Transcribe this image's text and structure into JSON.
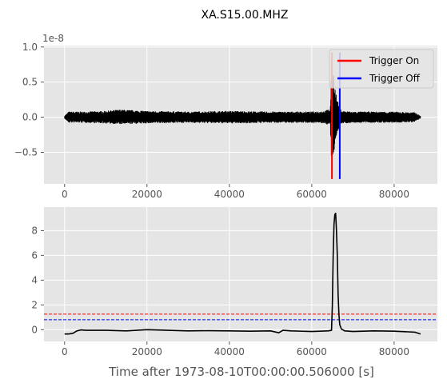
{
  "chart_data": {
    "title": "XA.S15.00.MHZ",
    "xlabel": "Time after 1973-08-10T00:00:00.506000 [s]",
    "style": "ggplot",
    "grid": true,
    "colors": {
      "background": "#e5e5e5",
      "grid": "#ffffff",
      "trace": "#000000",
      "on": "#ff0000",
      "off": "#0000ff",
      "tick": "#555555"
    },
    "panels": [
      {
        "type": "line",
        "name": "waveform",
        "xlim": [
          -5000,
          90500
        ],
        "ylim": [
          -0.95,
          1.02
        ],
        "y_offset_text": "1e-8",
        "xticks": [
          0,
          20000,
          40000,
          60000,
          80000
        ],
        "xtick_labels": [
          "0",
          "20000",
          "40000",
          "60000",
          "80000"
        ],
        "yticks": [
          -0.5,
          0.0,
          0.5,
          1.0
        ],
        "ytick_labels": [
          "−0.5",
          "0.0",
          "0.5",
          "1.0"
        ],
        "trace_envelope": {
          "x": [
            0,
            1000,
            5000,
            10000,
            13500,
            20000,
            30000,
            40000,
            50000,
            60000,
            63000,
            64500,
            64800,
            65000,
            65300,
            65700,
            66200,
            66800,
            67500,
            70000,
            80000,
            85000,
            86400
          ],
          "upper": [
            0.02,
            0.08,
            0.08,
            0.09,
            0.11,
            0.09,
            0.08,
            0.09,
            0.08,
            0.08,
            0.09,
            0.12,
            0.7,
            0.72,
            0.65,
            0.4,
            0.25,
            0.12,
            0.09,
            0.08,
            0.08,
            0.07,
            0.02
          ],
          "lower": [
            -0.02,
            -0.08,
            -0.08,
            -0.09,
            -0.1,
            -0.09,
            -0.08,
            -0.09,
            -0.08,
            -0.08,
            -0.09,
            -0.12,
            -0.65,
            -0.7,
            -0.6,
            -0.35,
            -0.22,
            -0.12,
            -0.09,
            -0.08,
            -0.08,
            -0.07,
            -0.02
          ]
        },
        "trigger_on_x": 64900,
        "trigger_off_x": 66800,
        "trigger_line_range": [
          -0.88,
          0.92
        ],
        "legend": {
          "position": "upper-right",
          "entries": [
            {
              "label": "Trigger On",
              "color": "#ff0000"
            },
            {
              "label": "Trigger Off",
              "color": "#0000ff"
            }
          ]
        }
      },
      {
        "type": "line",
        "name": "characteristic-function",
        "xlim": [
          -5000,
          90500
        ],
        "ylim": [
          -0.95,
          9.9
        ],
        "xticks": [
          0,
          20000,
          40000,
          60000,
          80000
        ],
        "xtick_labels": [
          "0",
          "20000",
          "40000",
          "60000",
          "80000"
        ],
        "yticks": [
          0,
          2,
          4,
          6,
          8
        ],
        "ytick_labels": [
          "0",
          "2",
          "4",
          "6",
          "8"
        ],
        "series": {
          "x": [
            0,
            1000,
            2000,
            3000,
            4000,
            5000,
            10000,
            15000,
            20000,
            25000,
            30000,
            35000,
            40000,
            45000,
            50000,
            52000,
            53000,
            55000,
            60000,
            64000,
            64800,
            65000,
            65200,
            65400,
            65600,
            65800,
            66000,
            66200,
            66400,
            66600,
            66800,
            67200,
            68000,
            70000,
            75000,
            80000,
            85000,
            86400
          ],
          "y": [
            -0.35,
            -0.35,
            -0.3,
            -0.1,
            -0.02,
            -0.05,
            -0.05,
            -0.1,
            0.0,
            -0.05,
            -0.1,
            -0.08,
            -0.1,
            -0.12,
            -0.1,
            -0.25,
            -0.05,
            -0.1,
            -0.15,
            -0.1,
            -0.05,
            2.0,
            6.0,
            8.5,
            9.3,
            9.4,
            8.0,
            6.0,
            2.8,
            1.2,
            0.4,
            0.05,
            -0.1,
            -0.15,
            -0.1,
            -0.12,
            -0.2,
            -0.35
          ]
        },
        "thresholds": [
          {
            "name": "on",
            "value": 1.25,
            "color": "#ff0000"
          },
          {
            "name": "off",
            "value": 0.8,
            "color": "#0000ff"
          }
        ]
      }
    ]
  }
}
